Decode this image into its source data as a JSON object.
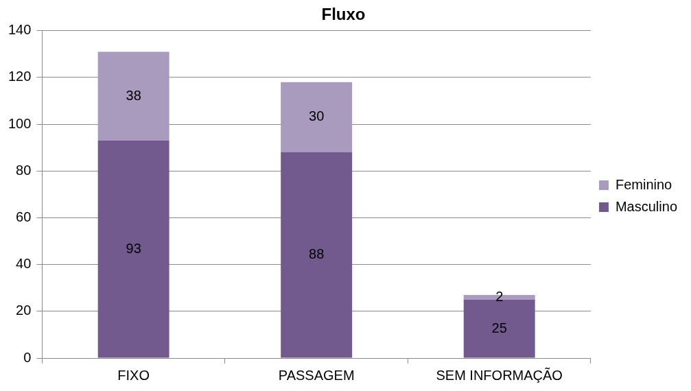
{
  "chart_data": {
    "type": "bar",
    "title": "Fluxo",
    "categories": [
      "FIXO",
      "PASSAGEM",
      "SEM INFORMAÇÃO"
    ],
    "stacked": true,
    "series": [
      {
        "name": "Masculino",
        "color": "#725a8e",
        "values": [
          93,
          88,
          25
        ]
      },
      {
        "name": "Feminino",
        "color": "#a99bbd",
        "values": [
          38,
          30,
          2
        ]
      }
    ],
    "ylim": [
      0,
      140
    ],
    "yticks": [
      0,
      20,
      40,
      60,
      80,
      100,
      120,
      140
    ],
    "grid": "y",
    "legend": "right",
    "data_labels": true
  }
}
